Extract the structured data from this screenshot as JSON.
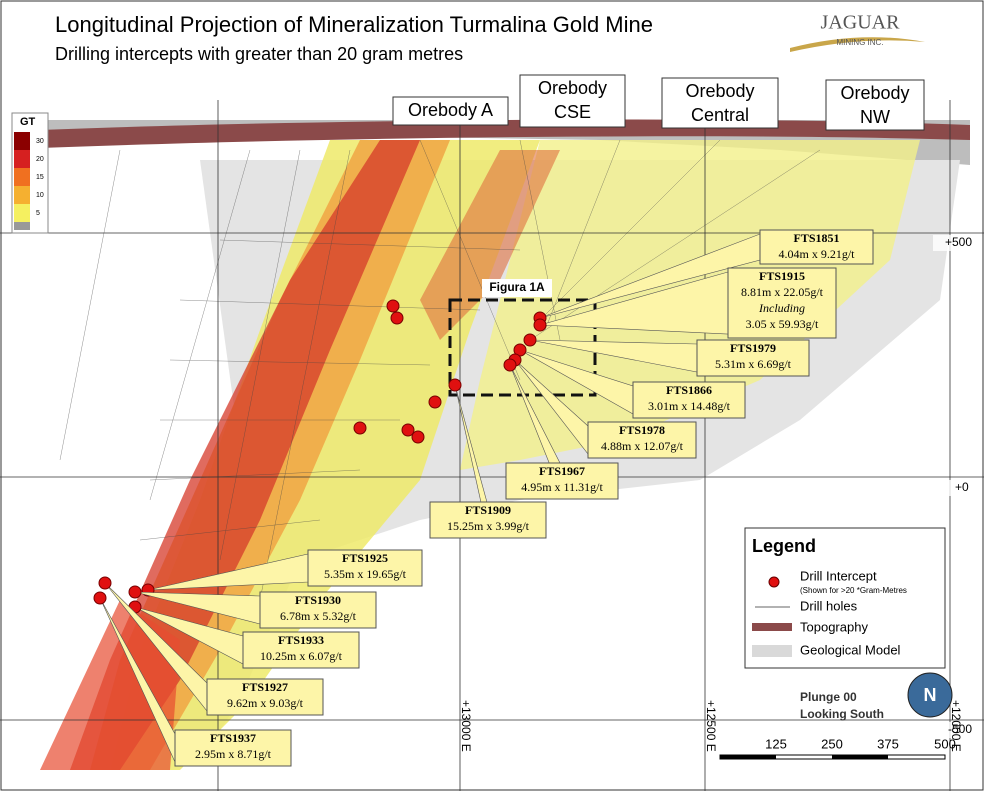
{
  "title": "Longitudinal Projection of Mineralization Turmalina Gold Mine",
  "subtitle": "Drilling intercepts with greater than 20 gram metres",
  "logo": {
    "name": "JAGUAR",
    "sub": "MINING INC."
  },
  "gt_scale": {
    "title": "GT",
    "labels": [
      "30",
      "20",
      "15",
      "10",
      "5"
    ]
  },
  "orebodies": [
    [
      "Orebody A"
    ],
    [
      "Orebody",
      "CSE"
    ],
    [
      "Orebody",
      "Central"
    ],
    [
      "Orebody",
      "NW"
    ]
  ],
  "elevations": [
    "+500",
    "+0",
    "-500"
  ],
  "eastings": [
    "+13000 E",
    "+12500 E",
    "+12000 E"
  ],
  "figure_box": "Figura 1A",
  "intercepts": [
    {
      "id": "FTS1851",
      "lines": [
        "4.04m x 9.21g/t"
      ]
    },
    {
      "id": "FTS1915",
      "lines": [
        "8.81m x 22.05g/t",
        "Including",
        "3.05 x 59.93g/t"
      ]
    },
    {
      "id": "FTS1979",
      "lines": [
        "5.31m x 6.69g/t"
      ]
    },
    {
      "id": "FTS1866",
      "lines": [
        "3.01m x 14.48g/t"
      ]
    },
    {
      "id": "FTS1978",
      "lines": [
        "4.88m x 12.07g/t"
      ]
    },
    {
      "id": "FTS1967",
      "lines": [
        "4.95m x 11.31g/t"
      ]
    },
    {
      "id": "FTS1909",
      "lines": [
        "15.25m x 3.99g/t"
      ]
    },
    {
      "id": "FTS1925",
      "lines": [
        "5.35m x 19.65g/t"
      ]
    },
    {
      "id": "FTS1930",
      "lines": [
        "6.78m x 5.32g/t"
      ]
    },
    {
      "id": "FTS1933",
      "lines": [
        "10.25m x 6.07g/t"
      ]
    },
    {
      "id": "FTS1927",
      "lines": [
        "9.62m x 9.03g/t"
      ]
    },
    {
      "id": "FTS1937",
      "lines": [
        "2.95m x 8.71g/t"
      ]
    }
  ],
  "legend": {
    "title": "Legend",
    "items": [
      {
        "label": "Drill Intercept",
        "note": "(Shown for >20 *Gram-Metres"
      },
      {
        "label": "Drill holes"
      },
      {
        "label": "Topography"
      },
      {
        "label": "Geological Model"
      }
    ]
  },
  "plunge": [
    "Plunge 00",
    "Looking South"
  ],
  "north": "N",
  "scale": [
    "125",
    "250",
    "375",
    "500"
  ]
}
